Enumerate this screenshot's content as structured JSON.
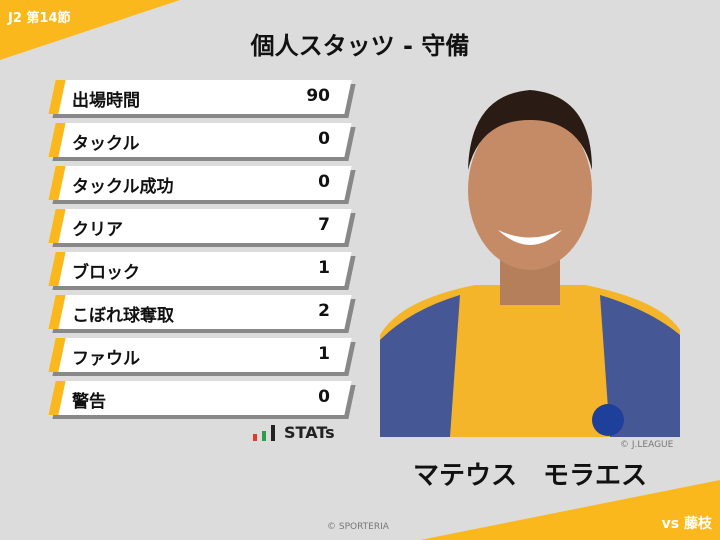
{
  "header": {
    "round": "J2 第14節",
    "title": "個人スタッツ - 守備",
    "opponent": "vs 藤枝"
  },
  "stats": [
    {
      "label": "出場時間",
      "value": "90"
    },
    {
      "label": "タックル",
      "value": "0"
    },
    {
      "label": "タックル成功",
      "value": "0"
    },
    {
      "label": "クリア",
      "value": "7"
    },
    {
      "label": "ブロック",
      "value": "1"
    },
    {
      "label": "こぼれ球奪取",
      "value": "2"
    },
    {
      "label": "ファウル",
      "value": "1"
    },
    {
      "label": "警告",
      "value": "0"
    }
  ],
  "brand": {
    "logo_text": "STATs",
    "copyright": "© SPORTERIA"
  },
  "player": {
    "name": "マテウス　モラエス",
    "photo_credit": "© J.LEAGUE"
  },
  "colors": {
    "accent": "#fbb81c",
    "background": "#dcdcdc"
  }
}
